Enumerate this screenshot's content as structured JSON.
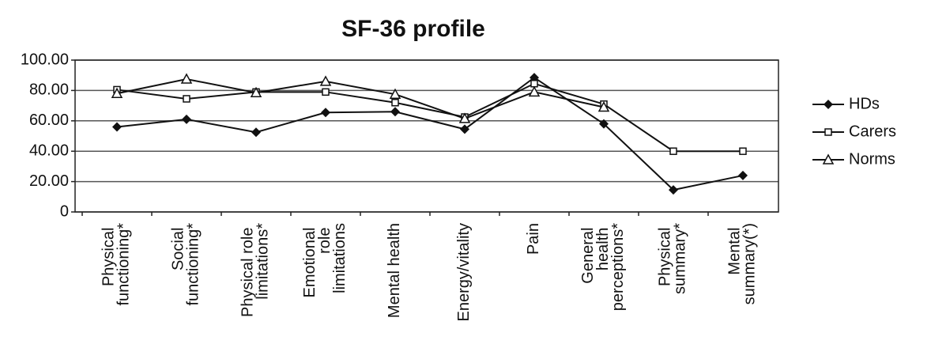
{
  "chart_data": {
    "type": "line",
    "title": "SF-36 profile",
    "categories": [
      "Physical functioning*",
      "Social functioning*",
      "Physical role limitations*",
      "Emotional role limitations",
      "Mental health",
      "Energy/vitality",
      "Pain",
      "General health perceptions*",
      "Physical summary*",
      "Mental summary(*)"
    ],
    "series": [
      {
        "name": "HDs",
        "color": "#111111",
        "marker": "diamond",
        "values": [
          56,
          61,
          52.5,
          65.5,
          66,
          54.5,
          88.5,
          58,
          14.5,
          24
        ]
      },
      {
        "name": "Carers",
        "color": "#111111",
        "marker": "square",
        "values": [
          80.5,
          74.5,
          79,
          79,
          72,
          62.5,
          84.5,
          71,
          40,
          40
        ]
      },
      {
        "name": "Norms",
        "color": "#111111",
        "marker": "triangle",
        "values": [
          78,
          87.5,
          78.5,
          86,
          77.5,
          61.5,
          79,
          69,
          null,
          null
        ]
      }
    ],
    "ylim": [
      0,
      100
    ],
    "yticks": [
      0,
      {
        "value": 20,
        "label": "20.00"
      },
      {
        "value": 40,
        "label": "40.00"
      },
      {
        "value": 60,
        "label": "60.00"
      },
      {
        "value": 80,
        "label": "80.00"
      },
      {
        "value": 100,
        "label": "100.00"
      }
    ],
    "grid": true,
    "legend": "right"
  }
}
